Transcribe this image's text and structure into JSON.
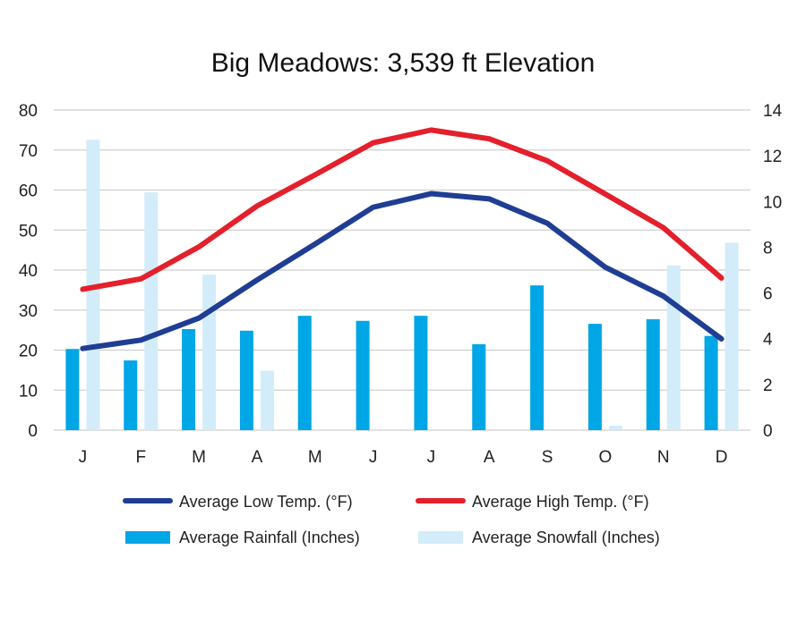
{
  "chart_data": {
    "type": "bar",
    "title": "Big Meadows: 3,539 ft Elevation",
    "categories": [
      "J",
      "F",
      "M",
      "A",
      "M",
      "J",
      "J",
      "A",
      "S",
      "O",
      "N",
      "D"
    ],
    "left_axis": {
      "ylim": [
        0,
        80
      ],
      "ticks": [
        0,
        10,
        20,
        30,
        40,
        50,
        60,
        70,
        80
      ],
      "label": ""
    },
    "right_axis": {
      "ylim": [
        0,
        14
      ],
      "ticks": [
        0,
        2,
        4,
        6,
        8,
        10,
        12,
        14
      ],
      "label": ""
    },
    "grid": true,
    "legend_position": "bottom",
    "series": [
      {
        "name": "Average Low Temp. (°F)",
        "kind": "line",
        "axis": "left",
        "color": "#1f3e93",
        "values": [
          20.4,
          22.5,
          28,
          37.5,
          46.5,
          55.7,
          59.1,
          57.8,
          51.7,
          40.7,
          33.5,
          22.8
        ]
      },
      {
        "name": "Average High Temp. (°F)",
        "kind": "line",
        "axis": "left",
        "color": "#e3202b",
        "values": [
          35.2,
          37.8,
          45.8,
          56,
          63.8,
          71.8,
          75,
          72.8,
          67.3,
          59,
          50.6,
          38
        ]
      },
      {
        "name": "Average Rainfall (Inches)",
        "kind": "bar",
        "axis": "right",
        "color": "#00a6e6",
        "values": [
          3.55,
          3.05,
          4.42,
          4.35,
          5.0,
          4.78,
          5.0,
          3.76,
          6.33,
          4.65,
          4.85,
          4.12
        ]
      },
      {
        "name": "Average Snowfall (Inches)",
        "kind": "bar",
        "axis": "right",
        "color": "#d3ecfa",
        "values": [
          12.7,
          10.4,
          6.8,
          2.6,
          0,
          0,
          0,
          0,
          0,
          0.2,
          7.2,
          8.2
        ]
      }
    ]
  },
  "colors": {
    "grid": "#cfcfcf",
    "axis_text": "#222222",
    "title": "#111111"
  }
}
